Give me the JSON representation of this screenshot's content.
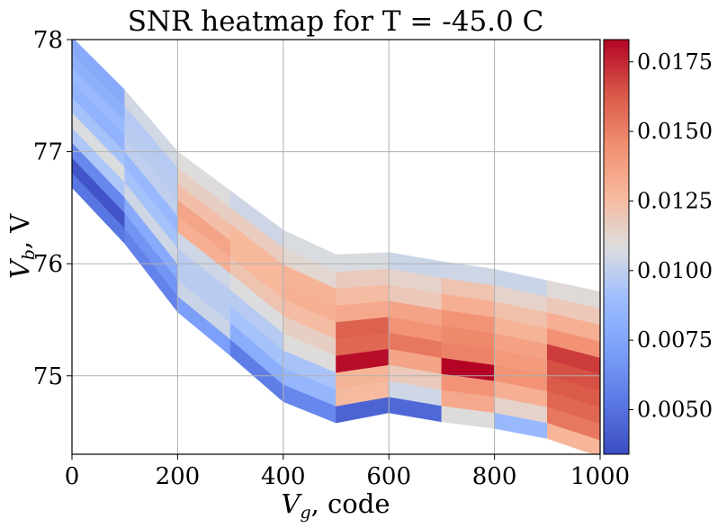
{
  "chart_data": {
    "type": "heatmap",
    "title": "SNR heatmap for T = -45.0 C",
    "xlabel_main": "V",
    "xlabel_sub": "g",
    "xlabel_tail": ", code",
    "ylabel_main": "V",
    "ylabel_sub": "b",
    "ylabel_tail": ", V",
    "xlim": [
      0,
      1000
    ],
    "ylim": [
      74.3,
      78.0
    ],
    "xticks": [
      "0",
      "200",
      "400",
      "600",
      "800",
      "1000"
    ],
    "yticks": [
      "75",
      "76",
      "77",
      "78"
    ],
    "grid": true,
    "colorscale": "coolwarm",
    "colorbar": {
      "range": [
        0.0034,
        0.0183
      ],
      "ticks": [
        "0.0050",
        "0.0075",
        "0.0100",
        "0.0125",
        "0.0150",
        "0.0175"
      ]
    },
    "vg": [
      0,
      100,
      200,
      300,
      400,
      500,
      600,
      700,
      800,
      900,
      1000
    ],
    "vb_top": [
      78.02,
      77.55,
      77.0,
      76.65,
      76.3,
      76.08,
      76.1,
      76.02,
      75.95,
      75.85,
      75.75
    ],
    "vb_bottom": [
      76.68,
      76.18,
      75.57,
      75.18,
      74.77,
      74.58,
      74.67,
      74.59,
      74.53,
      74.44,
      74.28
    ],
    "snr": [
      [
        0.0052,
        0.0058,
        0.0072,
        0.0055,
        0.006,
        0.0044,
        0.0046,
        0.0109,
        0.0087,
        0.0128
      ],
      [
        0.0038,
        0.0066,
        0.0103,
        0.008,
        0.0085,
        0.0126,
        0.0104,
        0.0134,
        0.0114,
        0.0153
      ],
      [
        0.006,
        0.0078,
        0.0098,
        0.0092,
        0.0093,
        0.0129,
        0.0118,
        0.0143,
        0.0131,
        0.0158
      ],
      [
        0.0095,
        0.0104,
        0.0098,
        0.0097,
        0.0109,
        0.0181,
        0.0136,
        0.0183,
        0.0143,
        0.0162
      ],
      [
        0.0108,
        0.0092,
        0.0104,
        0.0108,
        0.0116,
        0.0158,
        0.0153,
        0.0149,
        0.014,
        0.0165
      ],
      [
        0.0092,
        0.0086,
        0.0131,
        0.0121,
        0.0125,
        0.016,
        0.0143,
        0.0147,
        0.0137,
        0.017
      ],
      [
        0.0083,
        0.01,
        0.0136,
        0.0127,
        0.013,
        0.0134,
        0.0136,
        0.0143,
        0.0129,
        0.0144
      ],
      [
        0.0087,
        0.0098,
        0.0124,
        0.0127,
        0.0129,
        0.0125,
        0.0119,
        0.0131,
        0.0123,
        0.0131
      ],
      [
        0.0082,
        0.0097,
        0.0116,
        0.0117,
        0.0112,
        0.0118,
        0.0114,
        0.0121,
        0.0114,
        0.0119
      ],
      [
        0.0078,
        0.0105,
        0.0109,
        0.0104,
        0.0107,
        0.0107,
        0.0103,
        0.0104,
        0.0103,
        0.011
      ]
    ]
  }
}
